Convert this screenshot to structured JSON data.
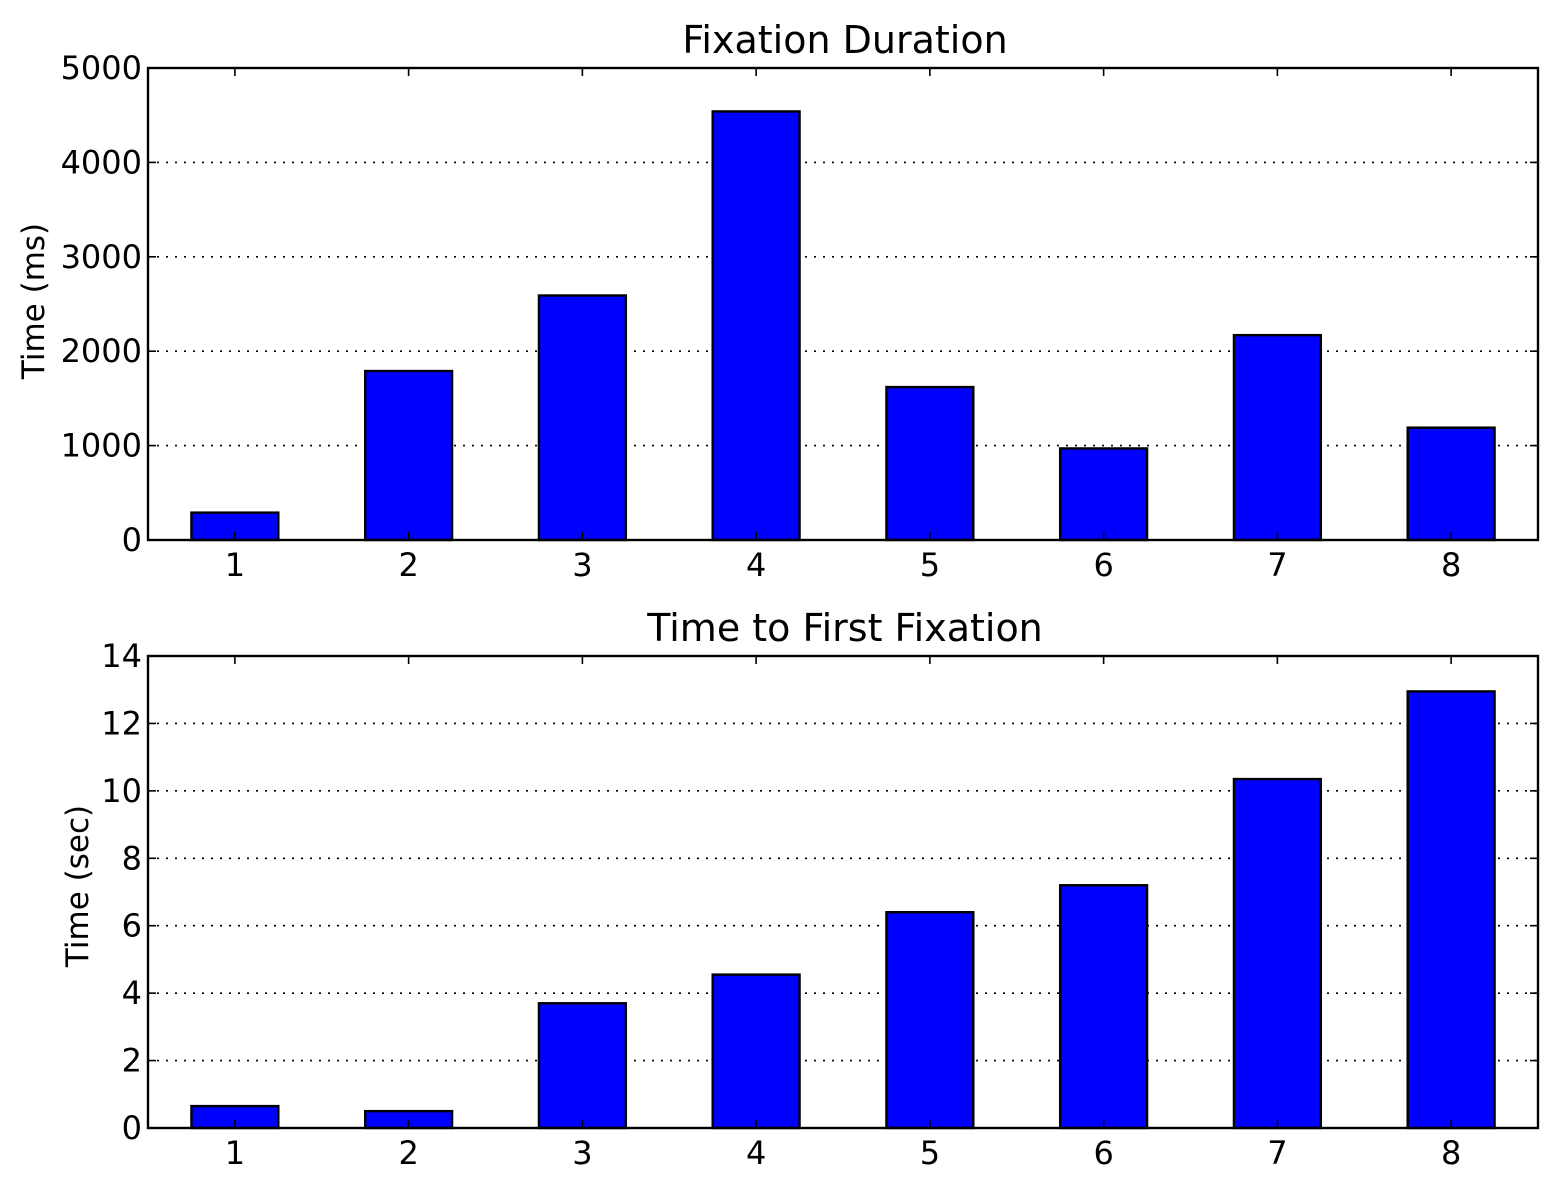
{
  "chart_data": [
    {
      "type": "bar",
      "title": "Fixation Duration",
      "xlabel": "",
      "ylabel": "Time (ms)",
      "categories": [
        "1",
        "2",
        "3",
        "4",
        "5",
        "6",
        "7",
        "8"
      ],
      "values": [
        290,
        1790,
        2590,
        4540,
        1620,
        970,
        2170,
        1190
      ],
      "ylim": [
        0,
        5000
      ],
      "yticks": [
        "0",
        "1000",
        "2000",
        "3000",
        "4000",
        "5000"
      ],
      "grid": true,
      "bar_color": "#0000ff"
    },
    {
      "type": "bar",
      "title": "Time to First Fixation",
      "xlabel": "",
      "ylabel": "Time (sec)",
      "categories": [
        "1",
        "2",
        "3",
        "4",
        "5",
        "6",
        "7",
        "8"
      ],
      "values": [
        0.65,
        0.5,
        3.7,
        4.55,
        6.4,
        7.2,
        10.35,
        12.95
      ],
      "ylim": [
        0,
        14
      ],
      "yticks": [
        "0",
        "2",
        "4",
        "6",
        "8",
        "10",
        "12",
        "14"
      ],
      "grid": true,
      "bar_color": "#0000ff"
    }
  ]
}
